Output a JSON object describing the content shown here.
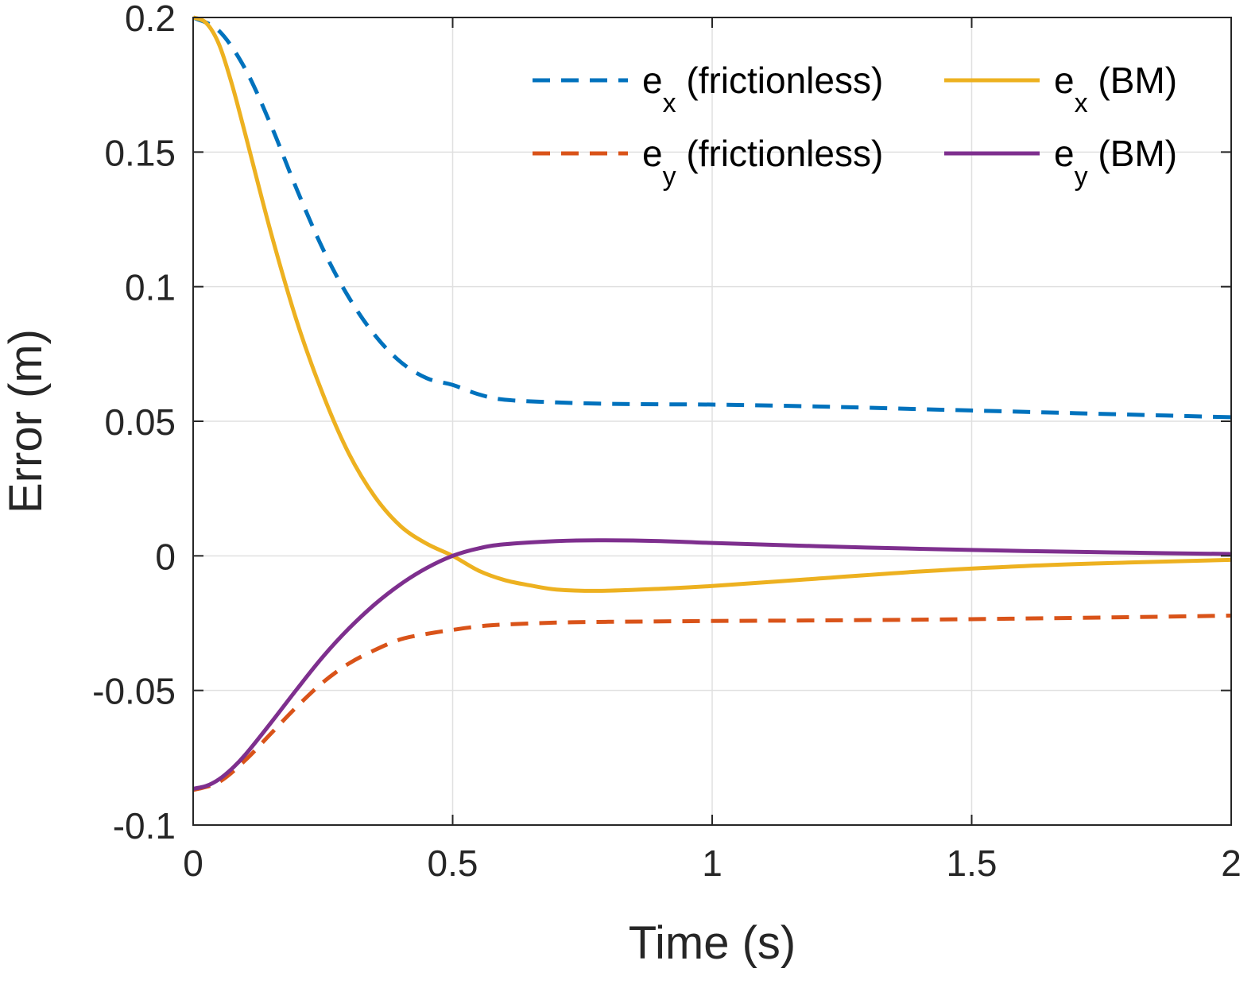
{
  "chart_data": {
    "type": "line",
    "title": "",
    "xlabel": "Time (s)",
    "ylabel": "Error (m)",
    "xlim": [
      0,
      2
    ],
    "ylim": [
      -0.1,
      0.2
    ],
    "xticks": [
      0,
      0.5,
      1,
      1.5,
      2
    ],
    "xtick_labels": [
      "0",
      "0.5",
      "1",
      "1.5",
      "2"
    ],
    "yticks": [
      -0.1,
      -0.05,
      0,
      0.05,
      0.1,
      0.15,
      0.2
    ],
    "ytick_labels": [
      "-0.1",
      "-0.05",
      "0",
      "0.05",
      "0.1",
      "0.15",
      "0.2"
    ],
    "grid": true,
    "legend_placement": "top-right",
    "series": [
      {
        "name": "e_x (frictionless)",
        "legend": {
          "base": "e",
          "sub": "x",
          "rest": " (frictionless)"
        },
        "color": "#0072BD",
        "style": "dashed",
        "x": [
          0,
          0.05,
          0.1,
          0.15,
          0.2,
          0.25,
          0.3,
          0.35,
          0.4,
          0.45,
          0.5,
          0.55,
          0.6,
          0.7,
          0.8,
          0.9,
          1.0,
          1.2,
          1.4,
          1.6,
          1.8,
          2.0
        ],
        "y": [
          0.2,
          0.195,
          0.181,
          0.16,
          0.136,
          0.114,
          0.096,
          0.082,
          0.072,
          0.066,
          0.0635,
          0.06,
          0.058,
          0.057,
          0.0565,
          0.0563,
          0.0562,
          0.0555,
          0.0545,
          0.0535,
          0.0525,
          0.0515
        ]
      },
      {
        "name": "e_y (frictionless)",
        "legend": {
          "base": "e",
          "sub": "y",
          "rest": " (frictionless)"
        },
        "color": "#D95319",
        "style": "dashed",
        "x": [
          0,
          0.05,
          0.1,
          0.15,
          0.2,
          0.25,
          0.3,
          0.35,
          0.4,
          0.45,
          0.5,
          0.55,
          0.6,
          0.7,
          0.8,
          1.0,
          1.2,
          1.4,
          1.6,
          1.8,
          2.0
        ],
        "y": [
          -0.087,
          -0.084,
          -0.076,
          -0.066,
          -0.056,
          -0.047,
          -0.04,
          -0.035,
          -0.031,
          -0.029,
          -0.0275,
          -0.0262,
          -0.0255,
          -0.0248,
          -0.0245,
          -0.0242,
          -0.024,
          -0.0237,
          -0.0233,
          -0.0228,
          -0.0222
        ]
      },
      {
        "name": "e_x (BM)",
        "legend": {
          "base": "e",
          "sub": "x",
          "rest": " (BM)"
        },
        "color": "#EDB120",
        "style": "solid",
        "x": [
          0,
          0.025,
          0.05,
          0.075,
          0.1,
          0.15,
          0.2,
          0.25,
          0.3,
          0.35,
          0.4,
          0.45,
          0.5,
          0.55,
          0.6,
          0.65,
          0.7,
          0.78,
          0.9,
          1.0,
          1.2,
          1.4,
          1.6,
          1.8,
          2.0
        ],
        "y": [
          0.2,
          0.198,
          0.19,
          0.175,
          0.157,
          0.12,
          0.087,
          0.06,
          0.038,
          0.022,
          0.011,
          0.0045,
          0.0,
          -0.0055,
          -0.009,
          -0.011,
          -0.0125,
          -0.013,
          -0.0122,
          -0.0112,
          -0.0085,
          -0.0058,
          -0.0038,
          -0.0025,
          -0.0015
        ]
      },
      {
        "name": "e_y (BM)",
        "legend": {
          "base": "e",
          "sub": "y",
          "rest": " (BM)"
        },
        "color": "#7E2F8E",
        "style": "solid",
        "x": [
          0,
          0.025,
          0.05,
          0.075,
          0.1,
          0.15,
          0.2,
          0.25,
          0.3,
          0.35,
          0.4,
          0.45,
          0.5,
          0.55,
          0.6,
          0.7,
          0.78,
          0.9,
          1.0,
          1.2,
          1.4,
          1.6,
          1.8,
          2.0
        ],
        "y": [
          -0.0865,
          -0.0855,
          -0.083,
          -0.079,
          -0.074,
          -0.062,
          -0.0495,
          -0.0375,
          -0.027,
          -0.018,
          -0.0105,
          -0.0045,
          0.0,
          0.0028,
          0.0043,
          0.0055,
          0.0058,
          0.0055,
          0.0048,
          0.0036,
          0.0026,
          0.0018,
          0.0012,
          0.0007
        ]
      }
    ]
  }
}
